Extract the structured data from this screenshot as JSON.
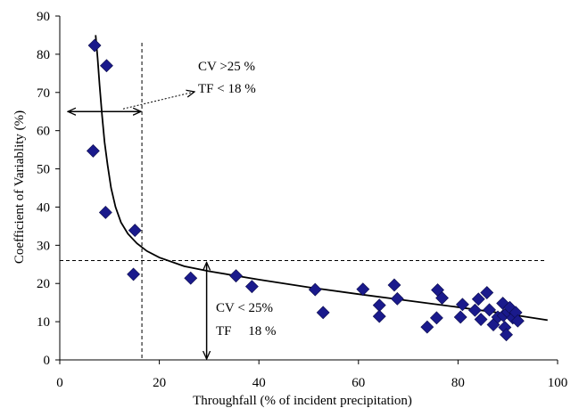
{
  "chart_data": {
    "type": "scatter",
    "xlabel": "Throughfall (% of incident precipitation)",
    "ylabel": "Coefficient of Variablity (%)",
    "xlim": [
      0,
      100
    ],
    "ylim": [
      0,
      90
    ],
    "xticks": [
      "0",
      "20",
      "40",
      "60",
      "80",
      "100"
    ],
    "yticks": [
      "0",
      "10",
      "20",
      "30",
      "40",
      "50",
      "60",
      "70",
      "80",
      "90"
    ],
    "grid": false,
    "marker_color": "#1a1a8c",
    "points": [
      {
        "x": 7.0,
        "y": 82.3
      },
      {
        "x": 9.4,
        "y": 77.0
      },
      {
        "x": 6.7,
        "y": 54.7
      },
      {
        "x": 9.2,
        "y": 38.6
      },
      {
        "x": 15.1,
        "y": 33.9
      },
      {
        "x": 14.8,
        "y": 22.4
      },
      {
        "x": 26.3,
        "y": 21.4
      },
      {
        "x": 35.4,
        "y": 22.0
      },
      {
        "x": 38.6,
        "y": 19.2
      },
      {
        "x": 51.3,
        "y": 18.4
      },
      {
        "x": 52.9,
        "y": 12.4
      },
      {
        "x": 60.9,
        "y": 18.5
      },
      {
        "x": 64.2,
        "y": 14.3
      },
      {
        "x": 64.2,
        "y": 11.4
      },
      {
        "x": 67.2,
        "y": 19.6
      },
      {
        "x": 67.8,
        "y": 16.0
      },
      {
        "x": 73.8,
        "y": 8.6
      },
      {
        "x": 75.7,
        "y": 11.0
      },
      {
        "x": 75.9,
        "y": 18.3
      },
      {
        "x": 76.8,
        "y": 16.2
      },
      {
        "x": 80.5,
        "y": 11.2
      },
      {
        "x": 80.9,
        "y": 14.5
      },
      {
        "x": 83.4,
        "y": 13.0
      },
      {
        "x": 84.1,
        "y": 15.9
      },
      {
        "x": 84.6,
        "y": 10.6
      },
      {
        "x": 85.8,
        "y": 17.6
      },
      {
        "x": 86.3,
        "y": 13.1
      },
      {
        "x": 87.1,
        "y": 9.2
      },
      {
        "x": 88.0,
        "y": 11.2
      },
      {
        "x": 89.0,
        "y": 14.8
      },
      {
        "x": 89.1,
        "y": 11.6
      },
      {
        "x": 89.4,
        "y": 8.5
      },
      {
        "x": 89.7,
        "y": 6.6
      },
      {
        "x": 90.0,
        "y": 12.5
      },
      {
        "x": 90.4,
        "y": 13.7
      },
      {
        "x": 91.0,
        "y": 11.0
      },
      {
        "x": 91.6,
        "y": 12.4
      },
      {
        "x": 92.0,
        "y": 10.2
      }
    ],
    "fit_curve": [
      {
        "x": 7.2,
        "y": 85
      },
      {
        "x": 7.6,
        "y": 79
      },
      {
        "x": 8.0,
        "y": 72
      },
      {
        "x": 8.5,
        "y": 64
      },
      {
        "x": 9.0,
        "y": 57
      },
      {
        "x": 9.6,
        "y": 51
      },
      {
        "x": 10.3,
        "y": 45
      },
      {
        "x": 11.2,
        "y": 40
      },
      {
        "x": 12.3,
        "y": 36
      },
      {
        "x": 13.7,
        "y": 33
      },
      {
        "x": 15.5,
        "y": 30.5
      },
      {
        "x": 17.5,
        "y": 28.5
      },
      {
        "x": 20,
        "y": 26.8
      },
      {
        "x": 25,
        "y": 24.5
      },
      {
        "x": 30,
        "y": 23.2
      },
      {
        "x": 40,
        "y": 21
      },
      {
        "x": 50,
        "y": 19
      },
      {
        "x": 60,
        "y": 17.2
      },
      {
        "x": 70,
        "y": 15.5
      },
      {
        "x": 80,
        "y": 13.8
      },
      {
        "x": 90,
        "y": 12
      },
      {
        "x": 98,
        "y": 10.4
      }
    ],
    "reference_lines": {
      "vertical_x": 16.5,
      "horizontal_y": 26
    },
    "annotations": {
      "upper_cv": "CV >25 %",
      "upper_tf": "TF < 18 %",
      "lower_cv": "CV < 25%",
      "lower_tf": "TF     18 %"
    }
  }
}
